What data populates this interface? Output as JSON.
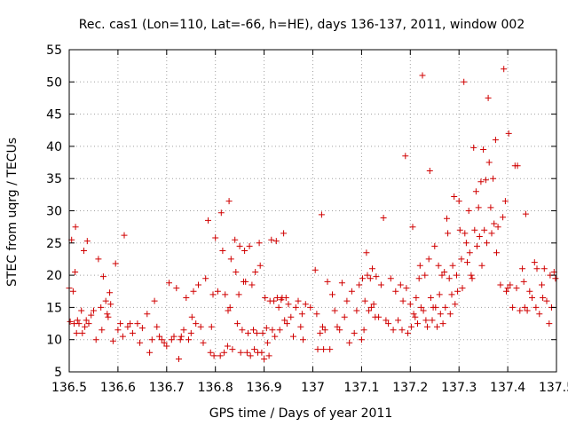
{
  "chart_data": {
    "type": "scatter",
    "title": "Rec. cas1 (Lon=110, Lat=-66, h=HE), days 136-137, 2011, window 002",
    "xlabel": "GPS time / Days of year 2011",
    "ylabel": "STEC from uqrg / TECUs",
    "xlim": [
      136.5,
      137.5
    ],
    "ylim": [
      5,
      55
    ],
    "xticks": [
      "136.5",
      "136.6",
      "136.7",
      "136.8",
      "136.9",
      "137",
      "137.1",
      "137.2",
      "137.3",
      "137.4",
      "137.5"
    ],
    "yticks": [
      "5",
      "10",
      "15",
      "20",
      "25",
      "30",
      "35",
      "40",
      "45",
      "50",
      "55"
    ],
    "grid": true,
    "marker": "plus",
    "color": "#d00000",
    "series": [
      {
        "points": [
          [
            136.5,
            18.0
          ],
          [
            136.502,
            12.8
          ],
          [
            136.505,
            25.5
          ],
          [
            136.508,
            17.5
          ],
          [
            136.51,
            12.5
          ],
          [
            136.512,
            20.5
          ],
          [
            136.513,
            27.5
          ],
          [
            136.515,
            11.0
          ],
          [
            136.517,
            13.0
          ],
          [
            136.52,
            12.5
          ],
          [
            136.525,
            14.5
          ],
          [
            136.527,
            11.0
          ],
          [
            136.53,
            23.8
          ],
          [
            136.532,
            12.0
          ],
          [
            136.535,
            13.0
          ],
          [
            136.537,
            25.3
          ],
          [
            136.54,
            12.5
          ],
          [
            136.545,
            13.8
          ],
          [
            136.55,
            14.5
          ],
          [
            136.555,
            10.0
          ],
          [
            136.56,
            22.5
          ],
          [
            136.565,
            15.0
          ],
          [
            136.567,
            11.5
          ],
          [
            136.57,
            19.8
          ],
          [
            136.575,
            16.0
          ],
          [
            136.578,
            14.0
          ],
          [
            136.58,
            13.5
          ],
          [
            136.583,
            17.3
          ],
          [
            136.585,
            15.5
          ],
          [
            136.59,
            9.8
          ],
          [
            136.595,
            21.8
          ],
          [
            136.6,
            11.5
          ],
          [
            136.605,
            12.5
          ],
          [
            136.61,
            10.5
          ],
          [
            136.613,
            26.2
          ],
          [
            136.62,
            12.0
          ],
          [
            136.625,
            12.5
          ],
          [
            136.63,
            11.0
          ],
          [
            136.64,
            12.5
          ],
          [
            136.645,
            9.5
          ],
          [
            136.65,
            11.8
          ],
          [
            136.66,
            14.0
          ],
          [
            136.665,
            8.0
          ],
          [
            136.67,
            10.0
          ],
          [
            136.675,
            16.0
          ],
          [
            136.68,
            12.0
          ],
          [
            136.685,
            10.5
          ],
          [
            136.69,
            10.0
          ],
          [
            136.695,
            9.5
          ],
          [
            136.7,
            9.0
          ],
          [
            136.705,
            18.8
          ],
          [
            136.71,
            10.0
          ],
          [
            136.715,
            10.5
          ],
          [
            136.72,
            18.0
          ],
          [
            136.725,
            7.0
          ],
          [
            136.728,
            10.0
          ],
          [
            136.73,
            10.5
          ],
          [
            136.735,
            11.5
          ],
          [
            136.74,
            16.5
          ],
          [
            136.745,
            10.0
          ],
          [
            136.75,
            11.0
          ],
          [
            136.752,
            13.5
          ],
          [
            136.755,
            17.5
          ],
          [
            136.76,
            12.5
          ],
          [
            136.765,
            18.5
          ],
          [
            136.77,
            12.0
          ],
          [
            136.775,
            9.5
          ],
          [
            136.78,
            19.5
          ],
          [
            136.785,
            28.5
          ],
          [
            136.79,
            8.0
          ],
          [
            136.792,
            12.0
          ],
          [
            136.795,
            17.0
          ],
          [
            136.797,
            7.5
          ],
          [
            136.8,
            25.8
          ],
          [
            136.805,
            17.5
          ],
          [
            136.81,
            7.5
          ],
          [
            136.812,
            29.7
          ],
          [
            136.815,
            23.8
          ],
          [
            136.818,
            8.0
          ],
          [
            136.82,
            17.0
          ],
          [
            136.825,
            9.0
          ],
          [
            136.826,
            14.5
          ],
          [
            136.828,
            31.5
          ],
          [
            136.83,
            15.0
          ],
          [
            136.832,
            22.5
          ],
          [
            136.835,
            8.5
          ],
          [
            136.84,
            25.5
          ],
          [
            136.842,
            20.5
          ],
          [
            136.845,
            12.5
          ],
          [
            136.848,
            17.0
          ],
          [
            136.85,
            24.5
          ],
          [
            136.852,
            8.0
          ],
          [
            136.855,
            11.5
          ],
          [
            136.858,
            19.0
          ],
          [
            136.86,
            23.8
          ],
          [
            136.862,
            19.0
          ],
          [
            136.865,
            8.0
          ],
          [
            136.867,
            11.0
          ],
          [
            136.87,
            24.5
          ],
          [
            136.872,
            7.5
          ],
          [
            136.875,
            18.5
          ],
          [
            136.878,
            11.5
          ],
          [
            136.88,
            8.5
          ],
          [
            136.882,
            20.5
          ],
          [
            136.885,
            11.0
          ],
          [
            136.887,
            8.0
          ],
          [
            136.89,
            25.0
          ],
          [
            136.892,
            21.5
          ],
          [
            136.895,
            8.0
          ],
          [
            136.897,
            11.0
          ],
          [
            136.9,
            7.0
          ],
          [
            136.902,
            16.5
          ],
          [
            136.905,
            11.8
          ],
          [
            136.907,
            9.5
          ],
          [
            136.91,
            7.5
          ],
          [
            136.912,
            16.0
          ],
          [
            136.915,
            25.5
          ],
          [
            136.917,
            11.5
          ],
          [
            136.92,
            16.0
          ],
          [
            136.922,
            10.5
          ],
          [
            136.925,
            25.3
          ],
          [
            136.927,
            16.5
          ],
          [
            136.93,
            15.0
          ],
          [
            136.932,
            11.5
          ],
          [
            136.935,
            16.2
          ],
          [
            136.937,
            16.5
          ],
          [
            136.94,
            26.5
          ],
          [
            136.942,
            13.0
          ],
          [
            136.945,
            16.5
          ],
          [
            136.947,
            12.5
          ],
          [
            136.95,
            15.5
          ],
          [
            136.955,
            13.5
          ],
          [
            136.96,
            10.5
          ],
          [
            136.965,
            15.0
          ],
          [
            136.97,
            16.0
          ],
          [
            136.975,
            12.0
          ],
          [
            136.978,
            14.0
          ],
          [
            136.98,
            10.0
          ],
          [
            136.985,
            15.5
          ],
          [
            136.995,
            15.0
          ],
          [
            137.005,
            20.8
          ],
          [
            137.008,
            14.0
          ],
          [
            137.01,
            8.5
          ],
          [
            137.015,
            11.0
          ],
          [
            137.018,
            29.4
          ],
          [
            137.02,
            12.0
          ],
          [
            137.022,
            8.5
          ],
          [
            137.025,
            11.5
          ],
          [
            137.03,
            19.0
          ],
          [
            137.035,
            8.5
          ],
          [
            137.04,
            17.0
          ],
          [
            137.045,
            14.5
          ],
          [
            137.05,
            12.0
          ],
          [
            137.055,
            11.5
          ],
          [
            137.06,
            18.8
          ],
          [
            137.065,
            13.5
          ],
          [
            137.07,
            16.0
          ],
          [
            137.075,
            9.5
          ],
          [
            137.08,
            17.5
          ],
          [
            137.085,
            11.0
          ],
          [
            137.09,
            14.5
          ],
          [
            137.095,
            18.5
          ],
          [
            137.1,
            10.0
          ],
          [
            137.102,
            19.5
          ],
          [
            137.105,
            11.5
          ],
          [
            137.107,
            16.0
          ],
          [
            137.11,
            23.5
          ],
          [
            137.112,
            20.0
          ],
          [
            137.115,
            14.5
          ],
          [
            137.118,
            19.5
          ],
          [
            137.12,
            15.0
          ],
          [
            137.122,
            21.0
          ],
          [
            137.125,
            15.5
          ],
          [
            137.128,
            13.5
          ],
          [
            137.13,
            19.8
          ],
          [
            137.135,
            13.5
          ],
          [
            137.14,
            18.5
          ],
          [
            137.145,
            28.9
          ],
          [
            137.15,
            13.0
          ],
          [
            137.155,
            12.5
          ],
          [
            137.16,
            19.5
          ],
          [
            137.165,
            11.5
          ],
          [
            137.17,
            17.5
          ],
          [
            137.175,
            13.0
          ],
          [
            137.18,
            18.5
          ],
          [
            137.183,
            11.5
          ],
          [
            137.185,
            16.0
          ],
          [
            137.19,
            38.5
          ],
          [
            137.192,
            18.0
          ],
          [
            137.195,
            11.0
          ],
          [
            137.2,
            15.5
          ],
          [
            137.202,
            12.0
          ],
          [
            137.205,
            27.5
          ],
          [
            137.207,
            14.0
          ],
          [
            137.21,
            13.5
          ],
          [
            137.212,
            16.5
          ],
          [
            137.215,
            12.5
          ],
          [
            137.218,
            19.5
          ],
          [
            137.22,
            21.5
          ],
          [
            137.222,
            15.0
          ],
          [
            137.225,
            51.0
          ],
          [
            137.227,
            14.5
          ],
          [
            137.23,
            20.0
          ],
          [
            137.232,
            13.0
          ],
          [
            137.235,
            12.0
          ],
          [
            137.238,
            22.5
          ],
          [
            137.24,
            36.2
          ],
          [
            137.242,
            16.5
          ],
          [
            137.245,
            13.0
          ],
          [
            137.247,
            15.0
          ],
          [
            137.25,
            24.5
          ],
          [
            137.252,
            15.0
          ],
          [
            137.255,
            12.0
          ],
          [
            137.258,
            21.5
          ],
          [
            137.26,
            17.0
          ],
          [
            137.262,
            14.0
          ],
          [
            137.265,
            20.0
          ],
          [
            137.267,
            12.5
          ],
          [
            137.27,
            20.5
          ],
          [
            137.272,
            15.0
          ],
          [
            137.275,
            28.8
          ],
          [
            137.277,
            26.5
          ],
          [
            137.28,
            19.5
          ],
          [
            137.282,
            14.0
          ],
          [
            137.285,
            17.0
          ],
          [
            137.287,
            21.5
          ],
          [
            137.29,
            32.2
          ],
          [
            137.292,
            15.5
          ],
          [
            137.295,
            20.0
          ],
          [
            137.297,
            17.5
          ],
          [
            137.3,
            31.5
          ],
          [
            137.302,
            27.0
          ],
          [
            137.305,
            22.5
          ],
          [
            137.307,
            18.0
          ],
          [
            137.31,
            50.0
          ],
          [
            137.312,
            26.5
          ],
          [
            137.315,
            25.0
          ],
          [
            137.317,
            22.0
          ],
          [
            137.32,
            30.0
          ],
          [
            137.322,
            23.5
          ],
          [
            137.325,
            20.0
          ],
          [
            137.327,
            19.5
          ],
          [
            137.33,
            39.8
          ],
          [
            137.332,
            27.0
          ],
          [
            137.335,
            33.0
          ],
          [
            137.337,
            24.5
          ],
          [
            137.34,
            30.5
          ],
          [
            137.342,
            26.0
          ],
          [
            137.345,
            34.5
          ],
          [
            137.347,
            21.5
          ],
          [
            137.35,
            39.5
          ],
          [
            137.352,
            27.0
          ],
          [
            137.355,
            34.8
          ],
          [
            137.357,
            25.0
          ],
          [
            137.36,
            47.5
          ],
          [
            137.362,
            37.5
          ],
          [
            137.365,
            30.5
          ],
          [
            137.367,
            26.5
          ],
          [
            137.37,
            35.0
          ],
          [
            137.372,
            28.0
          ],
          [
            137.375,
            41.0
          ],
          [
            137.377,
            23.5
          ],
          [
            137.38,
            27.5
          ],
          [
            137.385,
            18.5
          ],
          [
            137.39,
            29.0
          ],
          [
            137.392,
            52.0
          ],
          [
            137.395,
            31.5
          ],
          [
            137.397,
            17.5
          ],
          [
            137.4,
            18.0
          ],
          [
            137.402,
            42.0
          ],
          [
            137.405,
            18.5
          ],
          [
            137.41,
            15.0
          ],
          [
            137.415,
            37.0
          ],
          [
            137.418,
            18.0
          ],
          [
            137.42,
            37.0
          ],
          [
            137.425,
            14.5
          ],
          [
            137.43,
            21.0
          ],
          [
            137.433,
            19.0
          ],
          [
            137.435,
            15.0
          ],
          [
            137.437,
            29.5
          ],
          [
            137.44,
            14.5
          ],
          [
            137.445,
            17.5
          ],
          [
            137.45,
            16.5
          ],
          [
            137.455,
            22.0
          ],
          [
            137.458,
            15.0
          ],
          [
            137.46,
            21.0
          ],
          [
            137.465,
            14.0
          ],
          [
            137.47,
            18.5
          ],
          [
            137.472,
            16.5
          ],
          [
            137.475,
            21.0
          ],
          [
            137.48,
            16.0
          ],
          [
            137.485,
            12.5
          ],
          [
            137.487,
            20.0
          ],
          [
            137.49,
            15.0
          ],
          [
            137.495,
            20.5
          ],
          [
            137.498,
            19.5
          ]
        ]
      }
    ]
  }
}
